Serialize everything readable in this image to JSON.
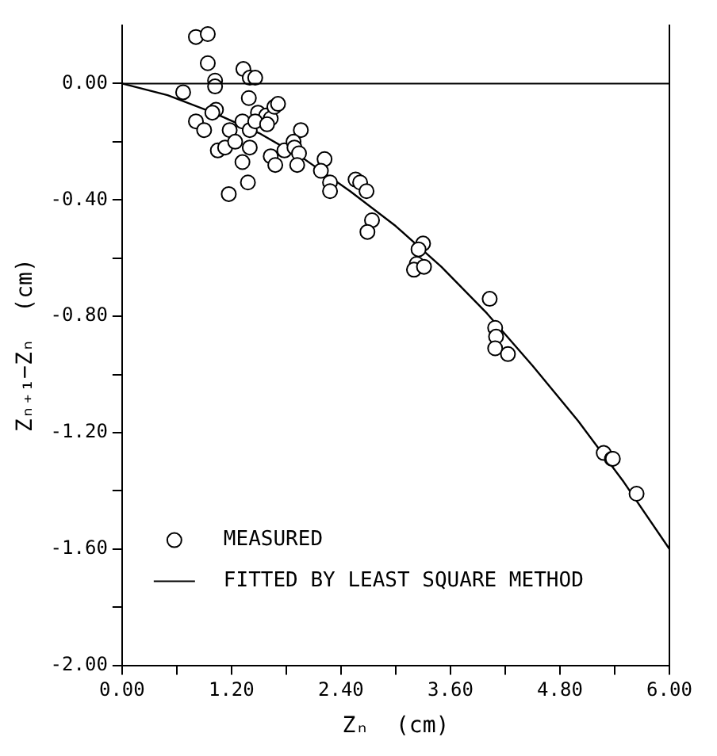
{
  "chart_data": {
    "type": "scatter",
    "xlabel": "Zₙ  (cm)",
    "ylabel": "Zₙ₊₁−Zₙ  (cm)",
    "xlim": [
      0,
      6
    ],
    "xticks": [
      {
        "value": 0,
        "label": "0.00"
      },
      {
        "value": 0.6,
        "label": null
      },
      {
        "value": 1.2,
        "label": "1.20"
      },
      {
        "value": 1.8,
        "label": null
      },
      {
        "value": 2.4,
        "label": "2.40"
      },
      {
        "value": 3,
        "label": null
      },
      {
        "value": 3.6,
        "label": "3.60"
      },
      {
        "value": 4.2,
        "label": null
      },
      {
        "value": 4.8,
        "label": "4.80"
      },
      {
        "value": 5.4,
        "label": null
      },
      {
        "value": 6,
        "label": "6.00"
      }
    ],
    "ylim": [
      -2,
      0.2
    ],
    "ref_lines": [
      {
        "axis": "y",
        "value": 0,
        "color": "#000000",
        "line_style": "solid"
      }
    ],
    "yticks": [
      {
        "value": -2,
        "label": "-2.00"
      },
      {
        "value": -1.8,
        "label": null
      },
      {
        "value": -1.6,
        "label": "-1.60"
      },
      {
        "value": -1.4,
        "label": null
      },
      {
        "value": -1.2,
        "label": "-1.20"
      },
      {
        "value": -1,
        "label": null
      },
      {
        "value": -0.8,
        "label": "-0.80"
      },
      {
        "value": -0.6,
        "label": null
      },
      {
        "value": -0.4,
        "label": "-0.40"
      },
      {
        "value": -0.2,
        "label": null
      },
      {
        "value": 0,
        "label": "0.00"
      }
    ],
    "grid": false,
    "legend": "bottom left",
    "marker": "circle",
    "series": [
      {
        "name": "MEASURED",
        "color": "#000000",
        "x": [
          0.81,
          0.94,
          0.94,
          0.67,
          1.33,
          1.4,
          1.46,
          1.02,
          1.02,
          1.39,
          1.03,
          0.99,
          0.81,
          0.9,
          1.18,
          1.32,
          1.4,
          1.49,
          1.58,
          1.63,
          1.46,
          1.59,
          1.67,
          1.71,
          1.96,
          1.05,
          1.13,
          1.24,
          1.4,
          1.32,
          1.63,
          1.68,
          1.38,
          1.17,
          1.78,
          1.88,
          1.89,
          1.94,
          1.92,
          2.22,
          2.18,
          2.28,
          2.28,
          2.56,
          2.61,
          2.68,
          2.74,
          2.69,
          3.3,
          3.25,
          3.23,
          3.2,
          3.31,
          4.03,
          4.09,
          4.1,
          4.09,
          4.23,
          5.28,
          5.37,
          5.38,
          5.64
        ],
        "values": [
          0.16,
          0.17,
          0.07,
          -0.03,
          0.05,
          0.02,
          0.02,
          0.01,
          -0.01,
          -0.05,
          -0.09,
          -0.1,
          -0.13,
          -0.16,
          -0.16,
          -0.13,
          -0.16,
          -0.1,
          -0.11,
          -0.12,
          -0.13,
          -0.14,
          -0.08,
          -0.07,
          -0.16,
          -0.23,
          -0.22,
          -0.2,
          -0.22,
          -0.27,
          -0.25,
          -0.28,
          -0.34,
          -0.38,
          -0.23,
          -0.2,
          -0.22,
          -0.24,
          -0.28,
          -0.26,
          -0.3,
          -0.34,
          -0.37,
          -0.33,
          -0.34,
          -0.37,
          -0.47,
          -0.51,
          -0.55,
          -0.57,
          -0.62,
          -0.64,
          -0.63,
          -0.74,
          -0.84,
          -0.87,
          -0.91,
          -0.93,
          -1.27,
          -1.29,
          -1.29,
          -1.41
        ]
      },
      {
        "name": "FITTED BY LEAST SQUARE METHOD",
        "type": "line",
        "color": "#000000",
        "marker": "none",
        "line_style": "solid",
        "x": [
          0,
          0.5,
          1,
          1.5,
          2,
          2.5,
          3,
          3.5,
          4,
          4.5,
          5,
          5.5,
          6
        ],
        "values": [
          0,
          -0.04,
          -0.1,
          -0.17,
          -0.26,
          -0.37,
          -0.49,
          -0.63,
          -0.79,
          -0.97,
          -1.16,
          -1.37,
          -1.6
        ]
      }
    ]
  }
}
